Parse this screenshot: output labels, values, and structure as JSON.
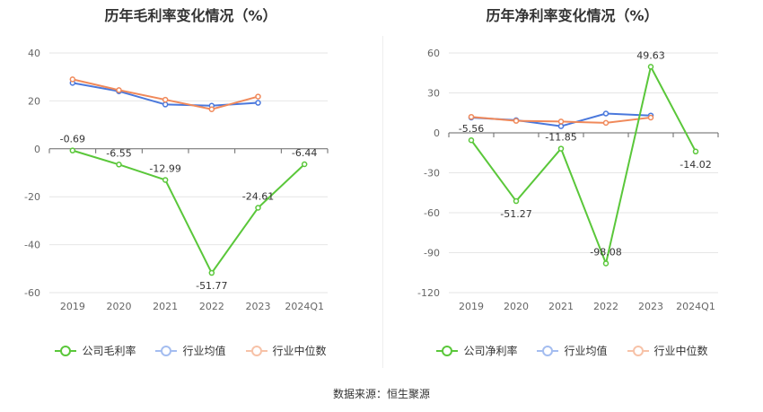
{
  "charts": [
    {
      "title": "历年毛利率变化情况（%）",
      "legend": [
        "公司毛利率",
        "行业均值",
        "行业中位数"
      ],
      "chart_data": {
        "type": "line",
        "categories": [
          "2019",
          "2020",
          "2021",
          "2022",
          "2023",
          "2024Q1"
        ],
        "ylim": [
          -60,
          40
        ],
        "yticks": [
          40,
          20,
          0,
          -20,
          -40,
          -60
        ],
        "grid": true,
        "legend_position": "bottom",
        "series": [
          {
            "name": "公司毛利率",
            "color": "#5ac73a",
            "values": [
              -0.69,
              -6.55,
              -12.99,
              -51.77,
              -24.61,
              -6.44
            ],
            "labels": [
              "-0.69",
              "-6.55",
              "-12.99",
              "-51.77",
              "-24.61",
              "-6.44"
            ]
          },
          {
            "name": "行业均值",
            "color": "#4a78dc",
            "values": [
              27.5,
              24,
              18.5,
              18,
              19.2,
              null
            ]
          },
          {
            "name": "行业中位数",
            "color": "#f0895a",
            "values": [
              29,
              24.5,
              20.5,
              16.5,
              21.8,
              null
            ]
          }
        ]
      }
    },
    {
      "title": "历年净利率变化情况（%）",
      "legend": [
        "公司净利率",
        "行业均值",
        "行业中位数"
      ],
      "chart_data": {
        "type": "line",
        "categories": [
          "2019",
          "2020",
          "2021",
          "2022",
          "2023",
          "2024Q1"
        ],
        "ylim": [
          -120,
          60
        ],
        "yticks": [
          60,
          30,
          0,
          -30,
          -60,
          -90,
          -120
        ],
        "grid": true,
        "legend_position": "bottom",
        "series": [
          {
            "name": "公司净利率",
            "color": "#5ac73a",
            "values": [
              -5.56,
              -51.27,
              -11.85,
              -98.08,
              49.63,
              -14.02
            ],
            "labels": [
              "-5.56",
              "-51.27",
              "-11.85",
              "-98.08",
              "49.63",
              "-14.02"
            ]
          },
          {
            "name": "行业均值",
            "color": "#4a78dc",
            "values": [
              11.5,
              9.5,
              5,
              14.5,
              13,
              null
            ]
          },
          {
            "name": "行业中位数",
            "color": "#f0895a",
            "values": [
              12,
              9,
              8.5,
              7.5,
              11.5,
              null
            ]
          }
        ]
      }
    }
  ],
  "source": "数据来源：恒生聚源"
}
